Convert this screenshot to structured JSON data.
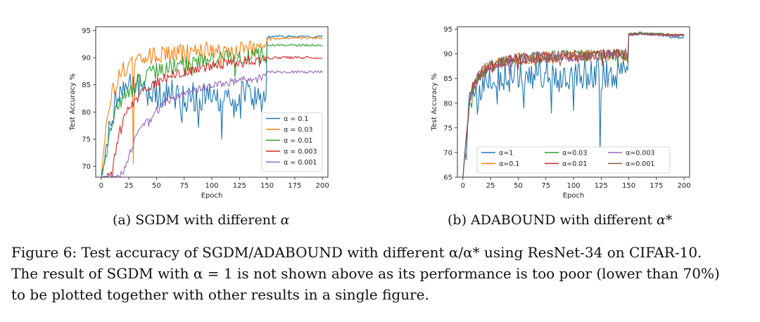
{
  "figure": {
    "subcaption_a": {
      "label": "(a)",
      "method": "SGDM",
      "text": "with different",
      "symbol": "α"
    },
    "subcaption_b": {
      "label": "(b)",
      "method": "ADABOUND",
      "text": "with different",
      "symbol": "α*"
    },
    "caption": {
      "line1": "Figure 6: Test accuracy of SGDM/ADABOUND with different α/α* using ResNet-34 on CIFAR-10.",
      "line2": "The result of SGDM with α = 1 is not shown above as its performance is too poor (lower than 70%)",
      "line3": "to be plotted together with other results in a single figure."
    }
  },
  "chart_data": [
    {
      "id": "sgdm",
      "type": "line",
      "title": "",
      "xlabel": "Epoch",
      "ylabel": "Test Accuracy %",
      "xlim": [
        -5,
        205
      ],
      "ylim": [
        68,
        95.7
      ],
      "xticks": [
        0,
        25,
        50,
        75,
        100,
        125,
        150,
        175,
        200
      ],
      "yticks": [
        70,
        75,
        80,
        85,
        90,
        95
      ],
      "legend_position": "lower-right",
      "legend_columns": 1,
      "series": [
        {
          "name": "α = 0.1",
          "color": "#1f77b4",
          "x": [
            0,
            5,
            10,
            15,
            20,
            25,
            30,
            40,
            50,
            60,
            70,
            80,
            90,
            100,
            110,
            120,
            130,
            140,
            149,
            150,
            160,
            170,
            180,
            190,
            200
          ],
          "y": [
            68,
            74,
            80,
            83,
            84,
            85,
            84,
            85,
            83,
            84,
            82,
            83,
            82,
            84,
            81,
            82,
            84,
            83,
            82,
            93.8,
            93.9,
            93.9,
            93.9,
            93.8,
            93.9
          ],
          "noise": 2.8,
          "spikes": [
            [
              73,
              78
            ],
            [
              109,
              75
            ],
            [
              120,
              79
            ],
            [
              145,
              80
            ]
          ]
        },
        {
          "name": "α = 0.03",
          "color": "#ff7f0e",
          "x": [
            0,
            5,
            10,
            15,
            20,
            25,
            30,
            40,
            50,
            60,
            70,
            80,
            90,
            100,
            110,
            120,
            130,
            140,
            149,
            150,
            160,
            170,
            180,
            190,
            200
          ],
          "y": [
            68,
            79,
            84,
            86,
            88,
            88.5,
            89,
            90,
            90.5,
            90.8,
            91,
            91.2,
            91.3,
            91.4,
            91.3,
            91.5,
            91.5,
            91.6,
            91.5,
            93.4,
            93.5,
            93.6,
            93.6,
            93.6,
            93.6
          ],
          "noise": 1.6,
          "spikes": [
            [
              29,
              70.5
            ]
          ]
        },
        {
          "name": "α = 0.01",
          "color": "#2ca02c",
          "x": [
            0,
            5,
            10,
            15,
            20,
            25,
            30,
            40,
            50,
            60,
            70,
            80,
            90,
            100,
            110,
            120,
            130,
            140,
            149,
            150,
            160,
            170,
            180,
            190,
            200
          ],
          "y": [
            68,
            73,
            78,
            81,
            83,
            84,
            85,
            86.5,
            87.5,
            88,
            88.5,
            89,
            89.3,
            89.5,
            89.8,
            90,
            90.2,
            90.4,
            90.5,
            92.2,
            92.3,
            92.3,
            92.3,
            92.3,
            92.3
          ],
          "noise": 1.5,
          "spikes": []
        },
        {
          "name": "α = 0.003",
          "color": "#d62728",
          "x": [
            0,
            5,
            10,
            15,
            20,
            25,
            30,
            40,
            50,
            60,
            70,
            80,
            90,
            100,
            110,
            120,
            130,
            140,
            149,
            150,
            160,
            170,
            180,
            190,
            200
          ],
          "y": [
            68,
            68,
            69,
            75,
            79,
            80.5,
            82,
            84,
            85.5,
            86.5,
            87.2,
            87.7,
            88.1,
            88.5,
            88.8,
            89.1,
            89.4,
            89.6,
            89.7,
            89.9,
            90,
            90,
            90,
            90,
            90
          ],
          "noise": 0.9,
          "spikes": []
        },
        {
          "name": "α = 0.001",
          "color": "#9467bd",
          "x": [
            0,
            5,
            10,
            15,
            20,
            25,
            30,
            40,
            50,
            60,
            70,
            80,
            90,
            100,
            110,
            120,
            130,
            140,
            149,
            150,
            160,
            170,
            180,
            190,
            200
          ],
          "y": [
            68,
            68,
            68,
            68,
            69,
            72,
            75,
            78.5,
            80.5,
            82,
            83,
            83.8,
            84.3,
            84.8,
            85.2,
            85.6,
            86,
            86.3,
            86.5,
            87.3,
            87.4,
            87.4,
            87.4,
            87.4,
            87.4
          ],
          "noise": 0.7,
          "spikes": []
        }
      ]
    },
    {
      "id": "adabound",
      "type": "line",
      "title": "",
      "xlabel": "Epoch",
      "ylabel": "Test Accuracy %",
      "xlim": [
        -5,
        205
      ],
      "ylim": [
        65,
        95.5
      ],
      "xticks": [
        0,
        25,
        50,
        75,
        100,
        125,
        150,
        175,
        200
      ],
      "yticks": [
        65,
        70,
        75,
        80,
        85,
        90,
        95
      ],
      "legend_position": "lower-center",
      "legend_columns": 3,
      "series": [
        {
          "name": "α=1",
          "color": "#1f77b4",
          "x": [
            0,
            3,
            6,
            10,
            20,
            30,
            50,
            70,
            90,
            110,
            130,
            140,
            149,
            150,
            160,
            170,
            180,
            190,
            200
          ],
          "y": [
            65,
            72,
            79,
            82,
            84,
            85,
            85.5,
            86,
            86,
            86,
            86,
            86.5,
            88,
            93.8,
            94.1,
            94,
            93.8,
            93.3,
            93.3
          ],
          "noise": 3.3,
          "spikes": [
            [
              124,
              70.2
            ],
            [
              80,
              78
            ],
            [
              55,
              79
            ],
            [
              100,
              78.5
            ]
          ]
        },
        {
          "name": "α=0.1",
          "color": "#ff7f0e",
          "x": [
            0,
            3,
            6,
            10,
            20,
            30,
            50,
            70,
            90,
            110,
            130,
            140,
            149,
            150,
            160,
            170,
            180,
            190,
            200
          ],
          "y": [
            65,
            73,
            80,
            84,
            87,
            88,
            89,
            89.3,
            89.5,
            89.6,
            89.7,
            89.8,
            89.8,
            93.9,
            94.1,
            94,
            93.9,
            93.8,
            93.8
          ],
          "noise": 1.2,
          "spikes": []
        },
        {
          "name": "α=0.03",
          "color": "#2ca02c",
          "x": [
            0,
            3,
            6,
            10,
            20,
            30,
            50,
            70,
            90,
            110,
            130,
            140,
            149,
            150,
            160,
            170,
            180,
            190,
            200
          ],
          "y": [
            65,
            73,
            80,
            84,
            87,
            88,
            89,
            89.4,
            89.6,
            89.7,
            89.8,
            89.9,
            89.9,
            94,
            94.2,
            94.1,
            94,
            93.9,
            93.9
          ],
          "noise": 1.2,
          "spikes": []
        },
        {
          "name": "α=0.01",
          "color": "#d62728",
          "x": [
            0,
            3,
            6,
            10,
            20,
            30,
            50,
            70,
            90,
            110,
            130,
            140,
            149,
            150,
            160,
            170,
            180,
            190,
            200
          ],
          "y": [
            65,
            73,
            80,
            84,
            87,
            88.2,
            89,
            89.4,
            89.6,
            89.7,
            89.8,
            89.9,
            89.9,
            93.9,
            94.1,
            94,
            93.9,
            93.8,
            93.8
          ],
          "noise": 1.2,
          "spikes": []
        },
        {
          "name": "α=0.003",
          "color": "#9467bd",
          "x": [
            0,
            3,
            6,
            10,
            20,
            30,
            50,
            70,
            90,
            110,
            130,
            140,
            149,
            150,
            160,
            170,
            180,
            190,
            200
          ],
          "y": [
            65,
            73,
            80,
            84,
            87,
            88,
            89,
            89.3,
            89.5,
            89.6,
            89.7,
            89.8,
            89.8,
            93.9,
            94,
            93.9,
            93.8,
            93.7,
            93.7
          ],
          "noise": 1.2,
          "spikes": []
        },
        {
          "name": "α=0.001",
          "color": "#8c564b",
          "x": [
            0,
            3,
            6,
            10,
            20,
            30,
            50,
            70,
            90,
            110,
            130,
            140,
            149,
            150,
            160,
            170,
            180,
            190,
            200
          ],
          "y": [
            65,
            73,
            80,
            84,
            87,
            88,
            89,
            89.3,
            89.5,
            89.6,
            89.7,
            89.8,
            89.8,
            93.9,
            94.1,
            94,
            93.9,
            93.8,
            93.8
          ],
          "noise": 1.2,
          "spikes": []
        }
      ]
    }
  ]
}
